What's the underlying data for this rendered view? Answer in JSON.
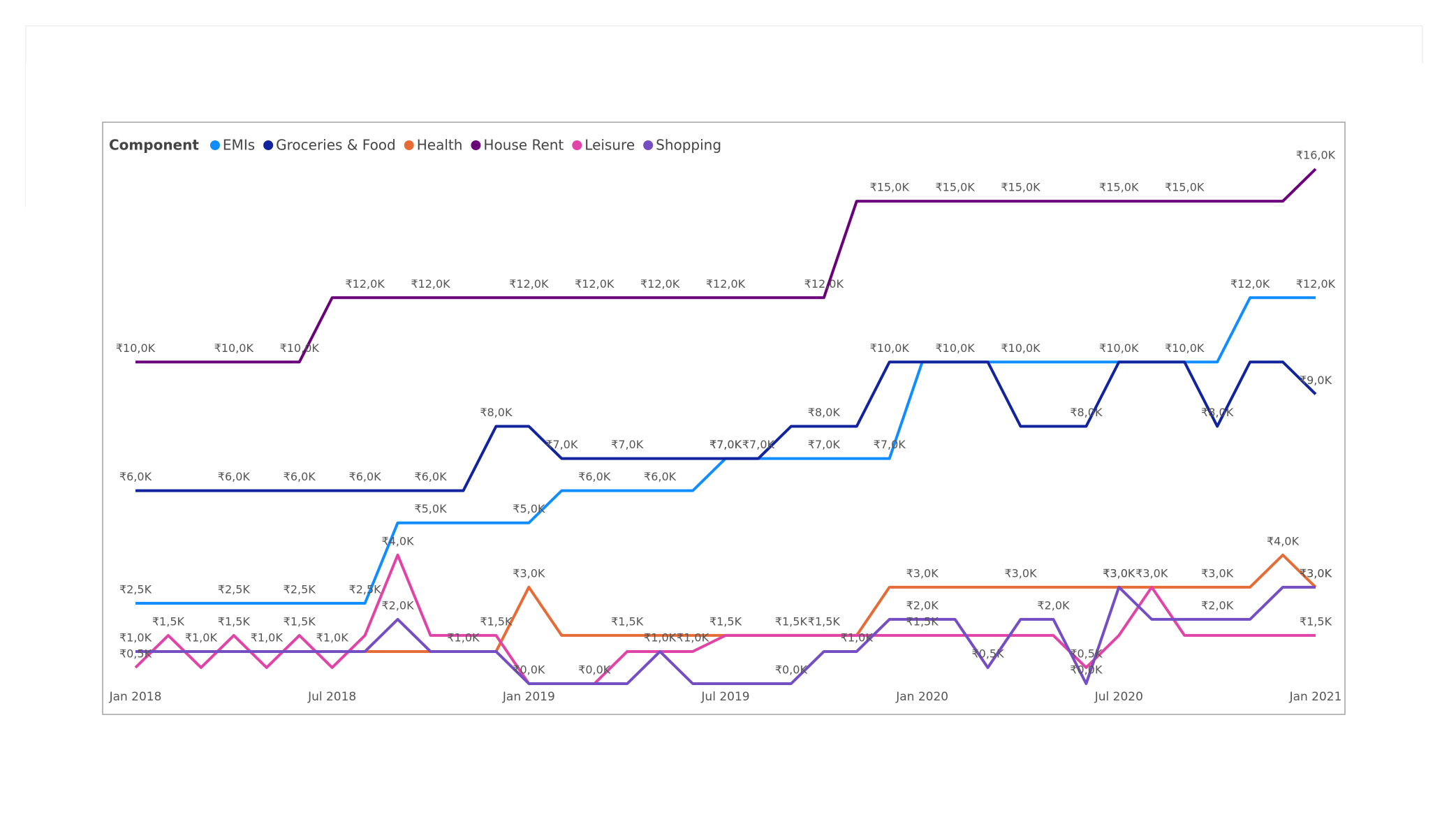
{
  "chart_data": {
    "type": "line",
    "legend_title": "Component",
    "categories": [
      "Jan 2018",
      null,
      null,
      null,
      null,
      null,
      "Jul 2018",
      null,
      null,
      null,
      null,
      null,
      "Jan 2019",
      null,
      null,
      null,
      null,
      null,
      "Jul 2019",
      null,
      null,
      null,
      null,
      null,
      "Jan 2020",
      null,
      null,
      null,
      null,
      null,
      "Jul 2020",
      null,
      null,
      null,
      null,
      null,
      "Jan 2021"
    ],
    "ylim": [
      0,
      16
    ],
    "series": [
      {
        "name": "EMIs",
        "color": "#118DFF",
        "values": [
          2.5,
          2.5,
          2.5,
          2.5,
          2.5,
          2.5,
          2.5,
          2.5,
          5,
          5,
          5,
          5,
          5,
          6,
          6,
          6,
          6,
          6,
          7,
          7,
          7,
          7,
          7,
          7,
          10,
          10,
          10,
          10,
          10,
          10,
          10,
          10,
          10,
          10,
          12,
          12,
          12
        ],
        "value_labels": [
          "₹2,5K",
          null,
          null,
          "₹2,5K",
          null,
          "₹2,5K",
          null,
          "₹2,5K",
          null,
          "₹5,0K",
          null,
          null,
          "₹5,0K",
          null,
          "₹6,0K",
          null,
          "₹6,0K",
          null,
          "₹7,0K",
          "₹7,0K",
          null,
          "₹7,0K",
          null,
          "₹7,0K",
          null,
          null,
          null,
          "₹10,0K",
          null,
          null,
          null,
          null,
          null,
          null,
          "₹12,0K",
          null,
          "₹12,0K"
        ]
      },
      {
        "name": "Groceries & Food",
        "color": "#12239E",
        "values": [
          6,
          6,
          6,
          6,
          6,
          6,
          6,
          6,
          6,
          6,
          6,
          8,
          8,
          7,
          7,
          7,
          7,
          7,
          7,
          7,
          8,
          8,
          8,
          10,
          10,
          10,
          10,
          8,
          8,
          8,
          10,
          10,
          10,
          8,
          10,
          10,
          9
        ],
        "value_labels": [
          "₹6,0K",
          null,
          null,
          "₹6,0K",
          null,
          "₹6,0K",
          null,
          "₹6,0K",
          null,
          "₹6,0K",
          null,
          "₹8,0K",
          null,
          "₹7,0K",
          null,
          "₹7,0K",
          null,
          null,
          "₹7,0K",
          null,
          null,
          "₹8,0K",
          null,
          "₹10,0K",
          null,
          "₹10,0K",
          null,
          null,
          null,
          "₹8,0K",
          "₹10,0K",
          null,
          "₹10,0K",
          "₹8,0K",
          null,
          null,
          "₹9,0K"
        ]
      },
      {
        "name": "Health",
        "color": "#E66C37",
        "values": [
          1,
          1,
          1,
          1,
          1,
          1,
          1,
          1,
          1,
          1,
          1,
          1,
          3,
          1.5,
          1.5,
          1.5,
          1.5,
          1.5,
          1.5,
          1.5,
          1.5,
          1.5,
          1.5,
          3,
          3,
          3,
          3,
          3,
          3,
          3,
          3,
          3,
          3,
          3,
          3,
          4,
          3
        ],
        "value_labels": [
          null,
          null,
          null,
          null,
          null,
          null,
          null,
          null,
          null,
          null,
          null,
          null,
          "₹3,0K",
          null,
          null,
          "₹1,5K",
          null,
          null,
          "₹1,5K",
          null,
          null,
          "₹1,5K",
          null,
          null,
          "₹3,0K",
          null,
          null,
          "₹3,0K",
          null,
          null,
          "₹3,0K",
          null,
          null,
          "₹3,0K",
          null,
          "₹4,0K",
          "₹3,0K"
        ]
      },
      {
        "name": "House Rent",
        "color": "#6B007B",
        "values": [
          10,
          10,
          10,
          10,
          10,
          10,
          12,
          12,
          12,
          12,
          12,
          12,
          12,
          12,
          12,
          12,
          12,
          12,
          12,
          12,
          12,
          12,
          15,
          15,
          15,
          15,
          15,
          15,
          15,
          15,
          15,
          15,
          15,
          15,
          15,
          15,
          16
        ],
        "value_labels": [
          "₹10,0K",
          null,
          null,
          "₹10,0K",
          null,
          "₹10,0K",
          null,
          "₹12,0K",
          null,
          "₹12,0K",
          null,
          null,
          "₹12,0K",
          null,
          "₹12,0K",
          null,
          "₹12,0K",
          null,
          "₹12,0K",
          null,
          null,
          "₹12,0K",
          null,
          "₹15,0K",
          null,
          "₹15,0K",
          null,
          "₹15,0K",
          null,
          null,
          "₹15,0K",
          null,
          "₹15,0K",
          null,
          null,
          null,
          "₹16,0K"
        ]
      },
      {
        "name": "Leisure",
        "color": "#E044A7",
        "values": [
          0.5,
          1.5,
          0.5,
          1.5,
          0.5,
          1.5,
          0.5,
          1.5,
          4,
          1.5,
          1.5,
          1.5,
          0,
          0,
          0,
          1,
          1,
          1,
          1.5,
          1.5,
          1.5,
          1.5,
          1.5,
          1.5,
          1.5,
          1.5,
          1.5,
          1.5,
          1.5,
          0.5,
          1.5,
          3,
          1.5,
          1.5,
          1.5,
          1.5,
          1.5
        ],
        "value_labels": [
          "₹0,5K",
          "₹1,5K",
          null,
          "₹1,5K",
          null,
          "₹1,5K",
          null,
          null,
          "₹4,0K",
          null,
          null,
          "₹1,5K",
          null,
          null,
          "₹0,0K",
          null,
          null,
          "₹1,0K",
          null,
          null,
          "₹1,5K",
          null,
          null,
          null,
          "₹1,5K",
          null,
          null,
          null,
          null,
          "₹0,5K",
          null,
          "₹3,0K",
          null,
          null,
          null,
          null,
          "₹1,5K"
        ]
      },
      {
        "name": "Shopping",
        "color": "#744EC2",
        "values": [
          1,
          1,
          1,
          1,
          1,
          1,
          1,
          1,
          2,
          1,
          1,
          1,
          0,
          0,
          0,
          0,
          1,
          0,
          0,
          0,
          0,
          1,
          1,
          2,
          2,
          2,
          0.5,
          2,
          2,
          0,
          3,
          2,
          2,
          2,
          2,
          3,
          3
        ],
        "value_labels": [
          "₹1,0K",
          null,
          "₹1,0K",
          null,
          "₹1,0K",
          null,
          "₹1,0K",
          null,
          "₹2,0K",
          null,
          "₹1,0K",
          null,
          "₹0,0K",
          null,
          null,
          null,
          "₹1,0K",
          null,
          null,
          null,
          "₹0,0K",
          null,
          "₹1,0K",
          null,
          "₹2,0K",
          null,
          "₹0,5K",
          null,
          "₹2,0K",
          "₹0,0K",
          "₹3,0K",
          null,
          null,
          "₹2,0K",
          null,
          null,
          "₹3,0K"
        ]
      }
    ]
  }
}
